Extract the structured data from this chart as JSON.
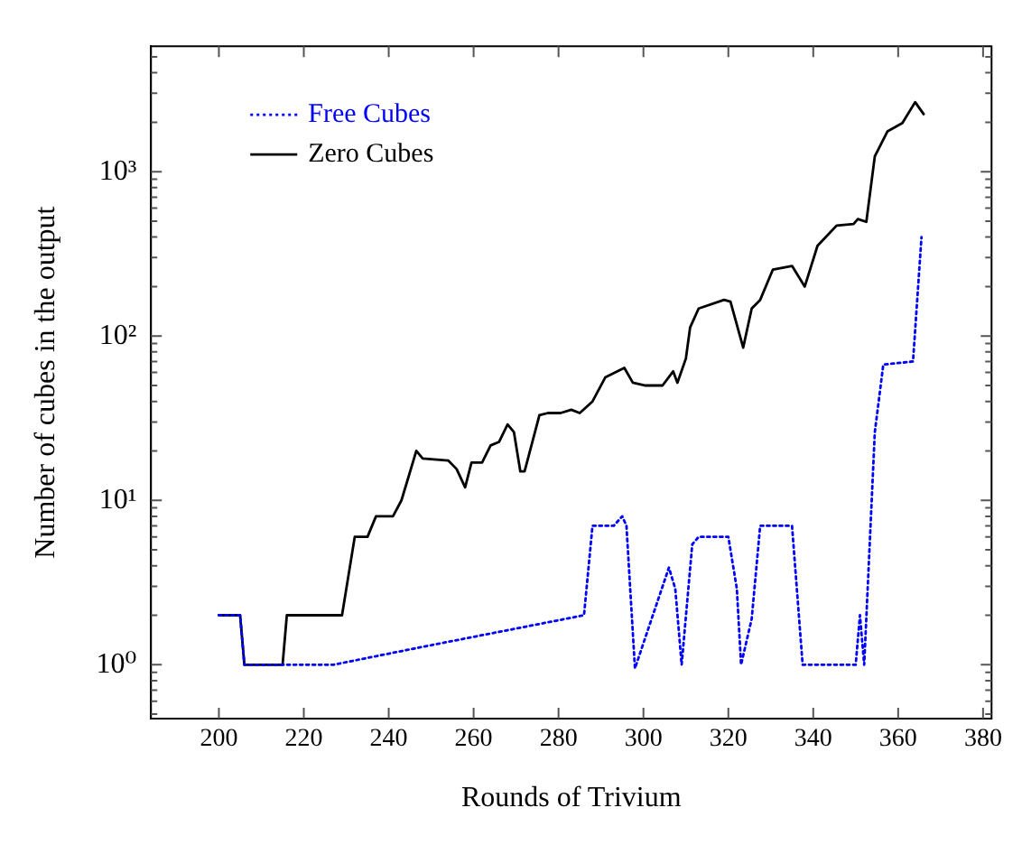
{
  "chart_data": {
    "type": "line",
    "xlabel": "Rounds of Trivium",
    "ylabel": "Number of cubes in the output",
    "log": "y",
    "grid": false,
    "legend": "top left",
    "marker": "none",
    "xlim": [
      184,
      382
    ],
    "xticks": [
      200,
      220,
      240,
      260,
      280,
      300,
      320,
      340,
      360,
      380
    ],
    "ylim": [
      0.47,
      5800
    ],
    "yticks": [
      {
        "value": 0.5,
        "label": null
      },
      {
        "value": 0.6,
        "label": null
      },
      {
        "value": 0.7,
        "label": null
      },
      {
        "value": 0.8,
        "label": null
      },
      {
        "value": 0.9,
        "label": null
      },
      {
        "value": 1,
        "label": "10⁰"
      },
      {
        "value": 2,
        "label": null
      },
      {
        "value": 3,
        "label": null
      },
      {
        "value": 4,
        "label": null
      },
      {
        "value": 5,
        "label": null
      },
      {
        "value": 6,
        "label": null
      },
      {
        "value": 7,
        "label": null
      },
      {
        "value": 8,
        "label": null
      },
      {
        "value": 9,
        "label": null
      },
      {
        "value": 10,
        "label": "10¹"
      },
      {
        "value": 20,
        "label": null
      },
      {
        "value": 30,
        "label": null
      },
      {
        "value": 40,
        "label": null
      },
      {
        "value": 50,
        "label": null
      },
      {
        "value": 60,
        "label": null
      },
      {
        "value": 70,
        "label": null
      },
      {
        "value": 80,
        "label": null
      },
      {
        "value": 90,
        "label": null
      },
      {
        "value": 100,
        "label": "10²"
      },
      {
        "value": 200,
        "label": null
      },
      {
        "value": 300,
        "label": null
      },
      {
        "value": 400,
        "label": null
      },
      {
        "value": 500,
        "label": null
      },
      {
        "value": 600,
        "label": null
      },
      {
        "value": 700,
        "label": null
      },
      {
        "value": 800,
        "label": null
      },
      {
        "value": 900,
        "label": null
      },
      {
        "value": 1000,
        "label": "10³"
      },
      {
        "value": 2000,
        "label": null
      },
      {
        "value": 3000,
        "label": null
      },
      {
        "value": 4000,
        "label": null
      },
      {
        "value": 5000,
        "label": null
      }
    ],
    "series": [
      {
        "name": "Free Cubes",
        "color": "#0000ff",
        "line_style": "dotted",
        "x": [
          200,
          205,
          206,
          215,
          227,
          249,
          286,
          288,
          293,
          295,
          296,
          298,
          306,
          307.5,
          309,
          311.5,
          313,
          320,
          322,
          323,
          325.5,
          327.5,
          335,
          337.5,
          350,
          351,
          352,
          354.5,
          356.5,
          363.5,
          365.5
        ],
        "values": [
          2,
          2,
          1,
          1,
          1,
          1.3,
          2,
          7,
          7,
          8,
          7,
          0.95,
          3.9,
          2.9,
          1,
          5.4,
          6,
          6,
          2.9,
          1,
          1.9,
          7,
          7,
          1,
          1,
          2,
          1,
          26,
          67,
          70,
          400
        ]
      },
      {
        "name": "Zero Cubes",
        "color": "#000000",
        "line_style": "solid",
        "x": [
          200,
          205,
          206,
          215,
          216,
          229,
          232,
          235,
          237,
          241,
          243,
          246.5,
          248,
          254,
          256,
          258,
          259.5,
          262,
          264,
          266,
          268,
          269.5,
          271,
          272,
          275.5,
          277.5,
          280.5,
          283,
          285,
          288,
          291,
          295.5,
          297.5,
          300.5,
          304.5,
          307,
          308,
          310,
          311,
          313,
          319,
          320.5,
          323.5,
          325.5,
          327.5,
          330.5,
          335,
          338,
          341,
          345.5,
          349.5,
          350.5,
          352.5,
          354.5,
          357.5,
          361,
          364,
          366
        ],
        "values": [
          2,
          2,
          1,
          1,
          2,
          2,
          6,
          6,
          8,
          8,
          10,
          20,
          18,
          17.5,
          15.5,
          12,
          17,
          17,
          21.6,
          22.7,
          29,
          26,
          15,
          15,
          33,
          34,
          34,
          35.6,
          34,
          40,
          56,
          64,
          52,
          50,
          50,
          61,
          52,
          73,
          113,
          147,
          166,
          162,
          85,
          147,
          166,
          254,
          267,
          200,
          354,
          470,
          480,
          515,
          495,
          1240,
          1760,
          1980,
          2650,
          2240
        ]
      }
    ]
  }
}
